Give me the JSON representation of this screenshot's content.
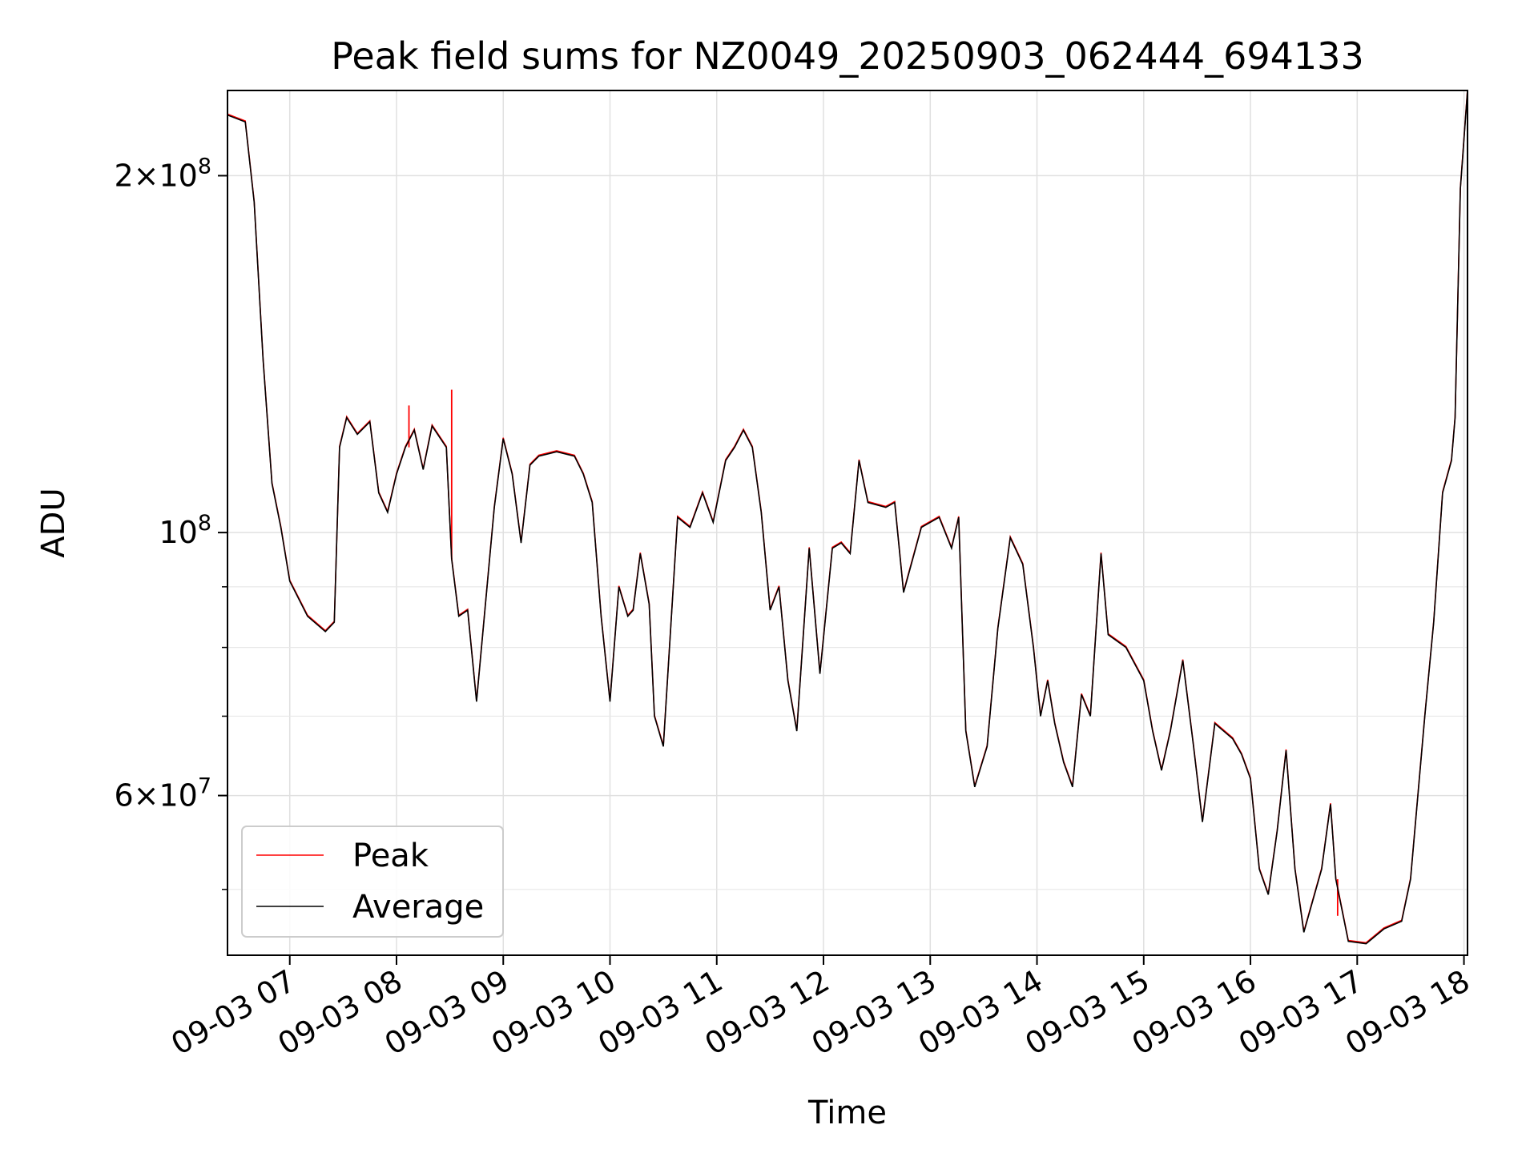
{
  "chart_data": {
    "type": "line",
    "title": "Peak field sums for NZ0049_20250903_062444_694133",
    "xlabel": "Time",
    "ylabel": "ADU",
    "y_scale": "log",
    "ylim": [
      44000000,
      236000000
    ],
    "xlim": [
      "09-03 06:25",
      "09-03 18:02"
    ],
    "grid": true,
    "legend_position": "lower-left",
    "x_ticks": [
      "09-03 07",
      "09-03 08",
      "09-03 09",
      "09-03 10",
      "09-03 11",
      "09-03 12",
      "09-03 13",
      "09-03 14",
      "09-03 15",
      "09-03 16",
      "09-03 17",
      "09-03 18"
    ],
    "y_tick_labels": [
      {
        "value": 200000000,
        "mantissa": "2",
        "exponent": "8"
      },
      {
        "value": 100000000,
        "mantissa": "",
        "exponent": "8"
      },
      {
        "value": 60000000,
        "mantissa": "6",
        "exponent": "7"
      }
    ],
    "y_minor_ticks": [
      50000000,
      70000000,
      80000000,
      90000000
    ],
    "series": [
      {
        "name": "Peak",
        "color": "#ff0000",
        "spikes": [
          {
            "x": "09-03 08:31",
            "y": 132000000
          },
          {
            "x": "09-03 16:49",
            "y": 47500000
          },
          {
            "x": "09-03 08:07",
            "y": 128000000
          }
        ]
      },
      {
        "name": "Average",
        "color": "#000000"
      }
    ],
    "shared_points": [
      [
        "09-03 06:25",
        225000000
      ],
      [
        "09-03 06:35",
        222000000
      ],
      [
        "09-03 06:40",
        190000000
      ],
      [
        "09-03 06:45",
        140000000
      ],
      [
        "09-03 06:50",
        110000000
      ],
      [
        "09-03 06:55",
        101000000
      ],
      [
        "09-03 07:00",
        91000000
      ],
      [
        "09-03 07:10",
        85000000
      ],
      [
        "09-03 07:20",
        82500000
      ],
      [
        "09-03 07:25",
        84000000
      ],
      [
        "09-03 07:28",
        118000000
      ],
      [
        "09-03 07:32",
        125000000
      ],
      [
        "09-03 07:38",
        121000000
      ],
      [
        "09-03 07:45",
        124000000
      ],
      [
        "09-03 07:50",
        108000000
      ],
      [
        "09-03 07:55",
        104000000
      ],
      [
        "09-03 08:00",
        112000000
      ],
      [
        "09-03 08:05",
        118000000
      ],
      [
        "09-03 08:10",
        122000000
      ],
      [
        "09-03 08:15",
        113000000
      ],
      [
        "09-03 08:20",
        123000000
      ],
      [
        "09-03 08:28",
        118000000
      ],
      [
        "09-03 08:31",
        95000000
      ],
      [
        "09-03 08:35",
        85000000
      ],
      [
        "09-03 08:40",
        86000000
      ],
      [
        "09-03 08:45",
        72000000
      ],
      [
        "09-03 08:55",
        105000000
      ],
      [
        "09-03 09:00",
        120000000
      ],
      [
        "09-03 09:05",
        112000000
      ],
      [
        "09-03 09:10",
        98000000
      ],
      [
        "09-03 09:15",
        114000000
      ],
      [
        "09-03 09:20",
        116000000
      ],
      [
        "09-03 09:30",
        117000000
      ],
      [
        "09-03 09:40",
        116000000
      ],
      [
        "09-03 09:45",
        112000000
      ],
      [
        "09-03 09:50",
        106000000
      ],
      [
        "09-03 09:55",
        85000000
      ],
      [
        "09-03 10:00",
        72000000
      ],
      [
        "09-03 10:05",
        90000000
      ],
      [
        "09-03 10:10",
        85000000
      ],
      [
        "09-03 10:13",
        86000000
      ],
      [
        "09-03 10:17",
        96000000
      ],
      [
        "09-03 10:22",
        87000000
      ],
      [
        "09-03 10:25",
        70000000
      ],
      [
        "09-03 10:30",
        66000000
      ],
      [
        "09-03 10:38",
        103000000
      ],
      [
        "09-03 10:45",
        101000000
      ],
      [
        "09-03 10:52",
        108000000
      ],
      [
        "09-03 10:58",
        102000000
      ],
      [
        "09-03 11:05",
        115000000
      ],
      [
        "09-03 11:10",
        118000000
      ],
      [
        "09-03 11:15",
        122000000
      ],
      [
        "09-03 11:20",
        118000000
      ],
      [
        "09-03 11:25",
        104000000
      ],
      [
        "09-03 11:30",
        86000000
      ],
      [
        "09-03 11:35",
        90000000
      ],
      [
        "09-03 11:40",
        75000000
      ],
      [
        "09-03 11:45",
        68000000
      ],
      [
        "09-03 11:52",
        97000000
      ],
      [
        "09-03 11:58",
        76000000
      ],
      [
        "09-03 12:05",
        97000000
      ],
      [
        "09-03 12:10",
        98000000
      ],
      [
        "09-03 12:15",
        96000000
      ],
      [
        "09-03 12:20",
        115000000
      ],
      [
        "09-03 12:25",
        106000000
      ],
      [
        "09-03 12:35",
        105000000
      ],
      [
        "09-03 12:40",
        106000000
      ],
      [
        "09-03 12:45",
        89000000
      ],
      [
        "09-03 12:55",
        101000000
      ],
      [
        "09-03 13:05",
        103000000
      ],
      [
        "09-03 13:12",
        97000000
      ],
      [
        "09-03 13:16",
        103000000
      ],
      [
        "09-03 13:20",
        68000000
      ],
      [
        "09-03 13:25",
        61000000
      ],
      [
        "09-03 13:32",
        66000000
      ],
      [
        "09-03 13:38",
        83000000
      ],
      [
        "09-03 13:45",
        99000000
      ],
      [
        "09-03 13:52",
        94000000
      ],
      [
        "09-03 13:58",
        80000000
      ],
      [
        "09-03 14:02",
        70000000
      ],
      [
        "09-03 14:06",
        75000000
      ],
      [
        "09-03 14:10",
        69000000
      ],
      [
        "09-03 14:15",
        64000000
      ],
      [
        "09-03 14:20",
        61000000
      ],
      [
        "09-03 14:25",
        73000000
      ],
      [
        "09-03 14:30",
        70000000
      ],
      [
        "09-03 14:36",
        96000000
      ],
      [
        "09-03 14:40",
        82000000
      ],
      [
        "09-03 14:50",
        80000000
      ],
      [
        "09-03 15:00",
        75000000
      ],
      [
        "09-03 15:05",
        68000000
      ],
      [
        "09-03 15:10",
        63000000
      ],
      [
        "09-03 15:15",
        68000000
      ],
      [
        "09-03 15:22",
        78000000
      ],
      [
        "09-03 15:28",
        66000000
      ],
      [
        "09-03 15:33",
        57000000
      ],
      [
        "09-03 15:40",
        69000000
      ],
      [
        "09-03 15:50",
        67000000
      ],
      [
        "09-03 15:55",
        65000000
      ],
      [
        "09-03 16:00",
        62000000
      ],
      [
        "09-03 16:05",
        52000000
      ],
      [
        "09-03 16:10",
        49500000
      ],
      [
        "09-03 16:15",
        56000000
      ],
      [
        "09-03 16:20",
        65500000
      ],
      [
        "09-03 16:25",
        52000000
      ],
      [
        "09-03 16:30",
        46000000
      ],
      [
        "09-03 16:40",
        52000000
      ],
      [
        "09-03 16:45",
        59000000
      ],
      [
        "09-03 16:48",
        51000000
      ],
      [
        "09-03 16:55",
        45200000
      ],
      [
        "09-03 17:05",
        45000000
      ],
      [
        "09-03 17:15",
        46300000
      ],
      [
        "09-03 17:25",
        47000000
      ],
      [
        "09-03 17:30",
        51000000
      ],
      [
        "09-03 17:38",
        70000000
      ],
      [
        "09-03 17:43",
        84000000
      ],
      [
        "09-03 17:48",
        108000000
      ],
      [
        "09-03 17:53",
        115000000
      ],
      [
        "09-03 17:55",
        125000000
      ],
      [
        "09-03 17:58",
        195000000
      ],
      [
        "09-03 18:02",
        236000000
      ]
    ]
  }
}
